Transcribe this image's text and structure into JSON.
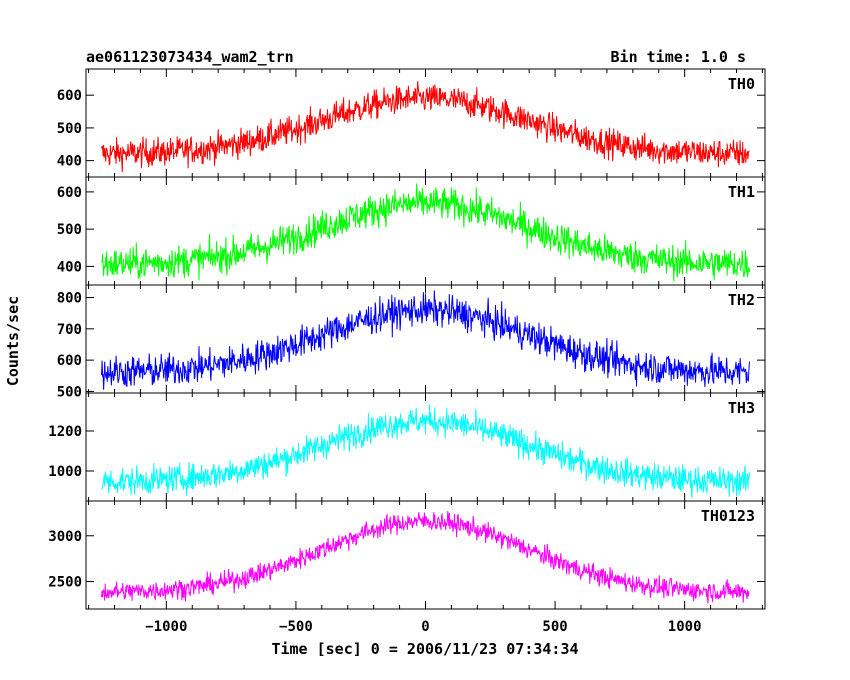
{
  "header": {
    "title": "ae061123073434_wam2_trn",
    "bin_time": "Bin time: 1.0 s"
  },
  "axes": {
    "xlabel": "Time [sec] 0 = 2006/11/23 07:34:34",
    "ylabel": "Counts/sec",
    "x_ticks": [
      "−1000",
      "−500",
      "0",
      "500",
      "1000"
    ]
  },
  "chart_data": {
    "type": "line",
    "x_range": [
      -1250,
      1250
    ],
    "xlim": [
      -1310,
      1310
    ],
    "bin_time_s": 1.0,
    "panels": [
      {
        "name": "TH0",
        "color": "#ff0000",
        "ylim": [
          350,
          680
        ],
        "yticks": [
          "400",
          "500",
          "600"
        ],
        "ytick_values": [
          400,
          500,
          600
        ],
        "baseline": 420,
        "peak": 590,
        "noise": 22
      },
      {
        "name": "TH1",
        "color": "#00ff00",
        "ylim": [
          350,
          640
        ],
        "yticks": [
          "400",
          "500",
          "600"
        ],
        "ytick_values": [
          400,
          500,
          600
        ],
        "baseline": 405,
        "peak": 570,
        "noise": 22
      },
      {
        "name": "TH2",
        "color": "#0000ff",
        "ylim": [
          495,
          840
        ],
        "yticks": [
          "500",
          "600",
          "700",
          "800"
        ],
        "ytick_values": [
          500,
          600,
          700,
          800
        ],
        "baseline": 560,
        "peak": 760,
        "noise": 26
      },
      {
        "name": "TH3",
        "color": "#00ffff",
        "ylim": [
          850,
          1390
        ],
        "yticks": [
          "1000",
          "1200"
        ],
        "ytick_values": [
          1000,
          1200
        ],
        "baseline": 945,
        "peak": 1250,
        "noise": 35
      },
      {
        "name": "TH0123",
        "color": "#ff00ff",
        "ylim": [
          2200,
          3380
        ],
        "yticks": [
          "2500",
          "3000"
        ],
        "ytick_values": [
          2500,
          3000
        ],
        "baseline": 2380,
        "peak": 3160,
        "noise": 55
      }
    ]
  }
}
